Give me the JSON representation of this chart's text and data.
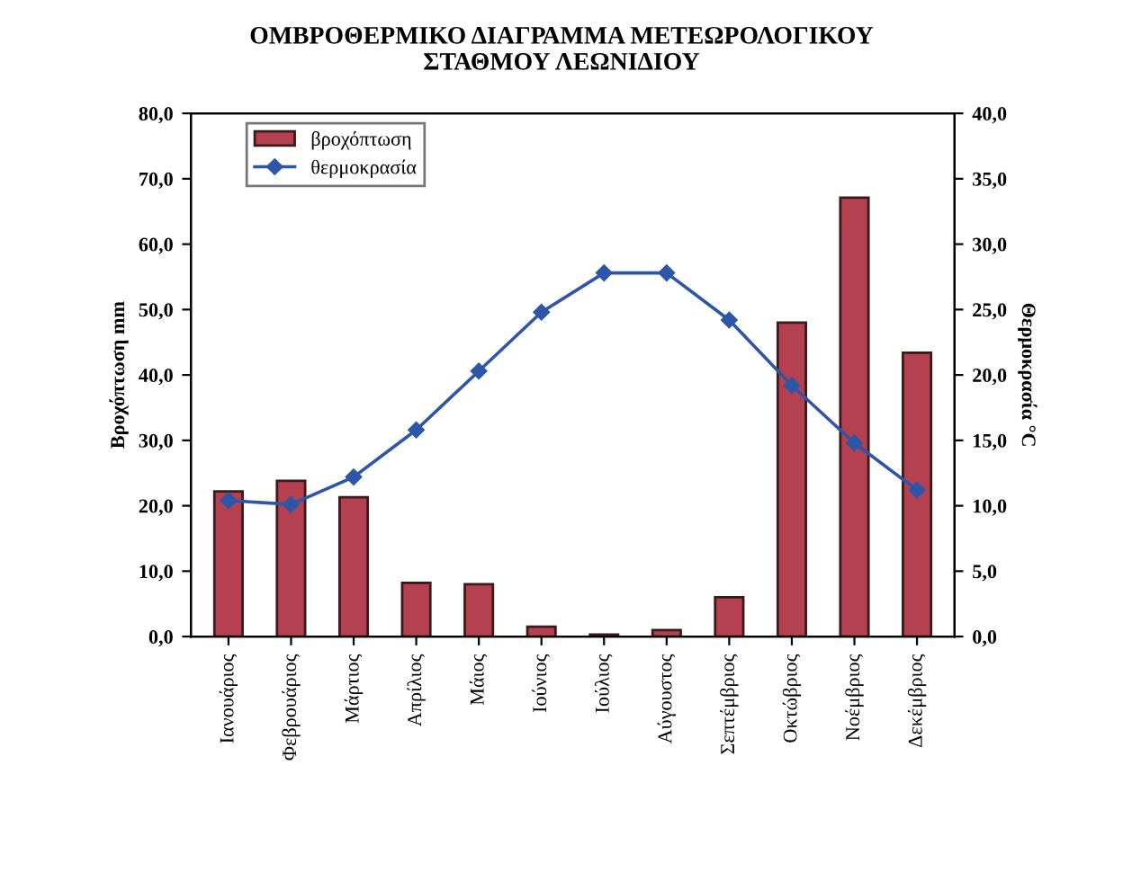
{
  "chart_data": {
    "type": "bar",
    "title": "ΟΜΒΡΟΘΕΡΜΙΚΟ ΔΙΑΓΡΑΜΜΑ ΜΕΤΕΩΡΟΛΟΓΙΚΟΥ\nΣΤΑΘΜΟΥ ΛΕΩΝΙΔΙΟΥ",
    "ylabel": "Βροχόπτωση mm",
    "y2label": "Θερμοκρασία °C",
    "categories": [
      "Ιανουάριος",
      "Φεβρουάριος",
      "Μάρτιος",
      "Απρίλιος",
      "Μάιος",
      "Ιούνιος",
      "Ιούλιος",
      "Αύγουστος",
      "Σεπτέμβριος",
      "Οκτώβριος",
      "Νοέμβριος",
      "Δεκέμβριος"
    ],
    "series": [
      {
        "name": "βροχόπτωση",
        "color": "#b5404f",
        "values": [
          22.2,
          23.8,
          21.3,
          8.2,
          8.0,
          1.5,
          0.3,
          1.0,
          6.0,
          48.0,
          67.1,
          43.4
        ]
      },
      {
        "name": "θερμοκρασία",
        "type": "line",
        "axis": "y2",
        "color": "#2e56a8",
        "marker": "diamond",
        "values": [
          10.4,
          10.1,
          12.2,
          15.8,
          20.3,
          24.8,
          27.8,
          27.8,
          24.2,
          19.2,
          14.8,
          11.2
        ]
      }
    ],
    "ylim": [
      0,
      80
    ],
    "yticks": [
      {
        "value": 0,
        "label": "0,0"
      },
      {
        "value": 10,
        "label": "10,0"
      },
      {
        "value": 20,
        "label": "20,0"
      },
      {
        "value": 30,
        "label": "30,0"
      },
      {
        "value": 40,
        "label": "40,0"
      },
      {
        "value": 50,
        "label": "50,0"
      },
      {
        "value": 60,
        "label": "60,0"
      },
      {
        "value": 70,
        "label": "70,0"
      },
      {
        "value": 80,
        "label": "80,0"
      }
    ],
    "y2lim": [
      0,
      40
    ],
    "y2ticks": [
      {
        "value": 0,
        "label": "0,0"
      },
      {
        "value": 5,
        "label": "5,0"
      },
      {
        "value": 10,
        "label": "10,0"
      },
      {
        "value": 15,
        "label": "15,0"
      },
      {
        "value": 20,
        "label": "20,0"
      },
      {
        "value": 25,
        "label": "25,0"
      },
      {
        "value": 30,
        "label": "30,0"
      },
      {
        "value": 35,
        "label": "35,0"
      },
      {
        "value": 40,
        "label": "40,0"
      }
    ],
    "legend": "top left",
    "grid": false
  }
}
